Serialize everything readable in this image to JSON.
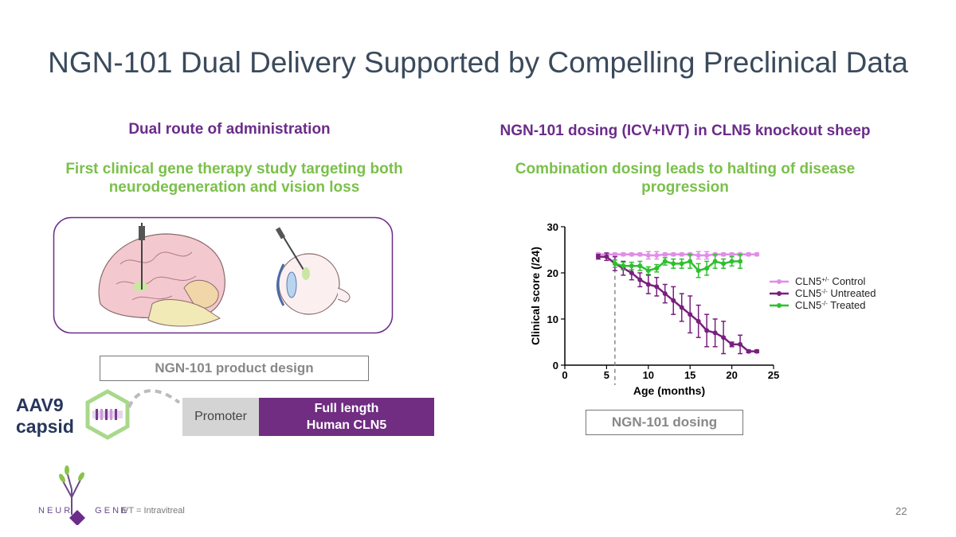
{
  "slide": {
    "title": "NGN-101 Dual Delivery Supported by Compelling Preclinical Data",
    "page_number": "22",
    "footnote": "IVT = Intravitreal"
  },
  "left": {
    "heading": "Dual route of administration",
    "subheading_line1": "First clinical gene therapy study targeting both",
    "subheading_line2": "neurodegeneration and vision loss",
    "product_design_label": "NGN-101 product design",
    "capsid_line1": "AAV9",
    "capsid_line2": "capsid",
    "promoter_label": "Promoter",
    "gene_line1": "Full length",
    "gene_line2": "Human CLN5"
  },
  "right": {
    "heading": "NGN-101 dosing (ICV+IVT) in CLN5 knockout sheep",
    "subheading_line1": "Combination dosing leads to halting of disease",
    "subheading_line2": "progression",
    "dosing_label": "NGN-101 dosing"
  },
  "logo": {
    "left_text": "NEUR",
    "right_text": "GENE"
  },
  "colors": {
    "title": "#3a4a5c",
    "heading_purple": "#6b2c8a",
    "heading_green": "#7ac04a",
    "control": "#e08ee6",
    "untreated": "#7a1f7e",
    "treated": "#2fc02f"
  },
  "chart_data": {
    "type": "line",
    "xlabel": "Age (months)",
    "ylabel": "Clinical score (/24)",
    "xlim": [
      0,
      25
    ],
    "ylim": [
      0,
      30
    ],
    "xticks": [
      "0",
      "5",
      "10",
      "15",
      "20",
      "25"
    ],
    "yticks": [
      "0",
      "10",
      "20",
      "30"
    ],
    "dosing_marker_x": 6,
    "legend_position": "right",
    "series": [
      {
        "name_base": "CLN5",
        "name_sup": "+/-",
        "name_suffix": " Control",
        "color": "#e08ee6",
        "x": [
          4,
          5,
          6,
          7,
          8,
          9,
          10,
          11,
          12,
          13,
          14,
          15,
          16,
          17,
          18,
          19,
          20,
          21,
          22,
          23
        ],
        "y": [
          24,
          24,
          24,
          24,
          24,
          24,
          23.8,
          23.8,
          24,
          24,
          24,
          24,
          23.8,
          23.8,
          24,
          24,
          24,
          24,
          24,
          24
        ],
        "err": [
          0.3,
          0.3,
          0.3,
          0.3,
          0.3,
          0.3,
          0.8,
          0.8,
          0.3,
          0.3,
          0.3,
          0.3,
          0.8,
          0.8,
          0.3,
          0.3,
          0.3,
          0.3,
          0.3,
          0.3
        ]
      },
      {
        "name_base": "CLN5",
        "name_sup": "-/-",
        "name_suffix": " Untreated",
        "color": "#7a1f7e",
        "x": [
          4,
          5,
          6,
          7,
          8,
          9,
          10,
          11,
          12,
          13,
          14,
          15,
          16,
          17,
          18,
          19,
          20,
          21,
          22,
          23
        ],
        "y": [
          23.5,
          23.5,
          22,
          21,
          20,
          18.5,
          17.5,
          17,
          15.5,
          14,
          12.5,
          11,
          9.5,
          7.5,
          7,
          6,
          4.5,
          4.5,
          3,
          3
        ],
        "err": [
          0.5,
          0.8,
          1.5,
          1.5,
          1.5,
          1.5,
          2.0,
          2.0,
          2.0,
          3.0,
          3.0,
          4.0,
          3.5,
          3.5,
          3.0,
          3.5,
          0.5,
          2.0,
          0.3,
          0.3
        ]
      },
      {
        "name_base": "CLN5",
        "name_sup": "-/-",
        "name_suffix": " Treated",
        "color": "#2fc02f",
        "x": [
          6,
          7,
          8,
          9,
          10,
          11,
          12,
          13,
          14,
          15,
          16,
          17,
          18,
          19,
          20,
          21
        ],
        "y": [
          22,
          21.5,
          21.5,
          21.5,
          20.5,
          21,
          22.5,
          22,
          22,
          22.5,
          20.5,
          21,
          22.5,
          22,
          22.5,
          22.5
        ],
        "err": [
          0.8,
          0.8,
          0.8,
          1.0,
          0.8,
          0.8,
          0.8,
          1.0,
          1.0,
          1.5,
          1.5,
          1.5,
          1.5,
          1.0,
          1.0,
          1.5
        ]
      }
    ]
  }
}
